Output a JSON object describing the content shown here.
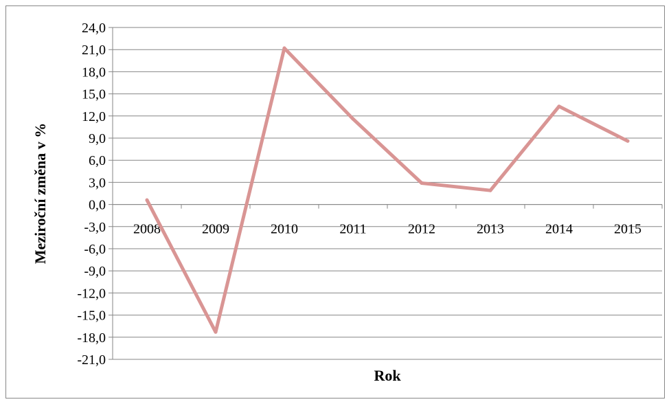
{
  "chart_data": {
    "type": "line",
    "title": "",
    "xlabel": "Rok",
    "ylabel": "Meziroční změna v %",
    "categories": [
      "2008",
      "2009",
      "2010",
      "2011",
      "2012",
      "2013",
      "2014",
      "2015"
    ],
    "series": [
      {
        "values": [
          0.6,
          -17.3,
          21.2,
          11.6,
          2.9,
          1.9,
          13.3,
          8.6
        ]
      }
    ],
    "ylim": [
      -21.0,
      24.0
    ],
    "ytick_step": 3.0,
    "ytick_labels": [
      "-21,0",
      "-18,0",
      "-15,0",
      "-12,0",
      "-9,0",
      "-6,0",
      "-3,0",
      "0,0",
      "3,0",
      "6,0",
      "9,0",
      "12,0",
      "15,0",
      "18,0",
      "21,0",
      "24,0"
    ],
    "grid": true,
    "legend": "none",
    "line_color": "#D99594",
    "grid_color": "#868686"
  }
}
